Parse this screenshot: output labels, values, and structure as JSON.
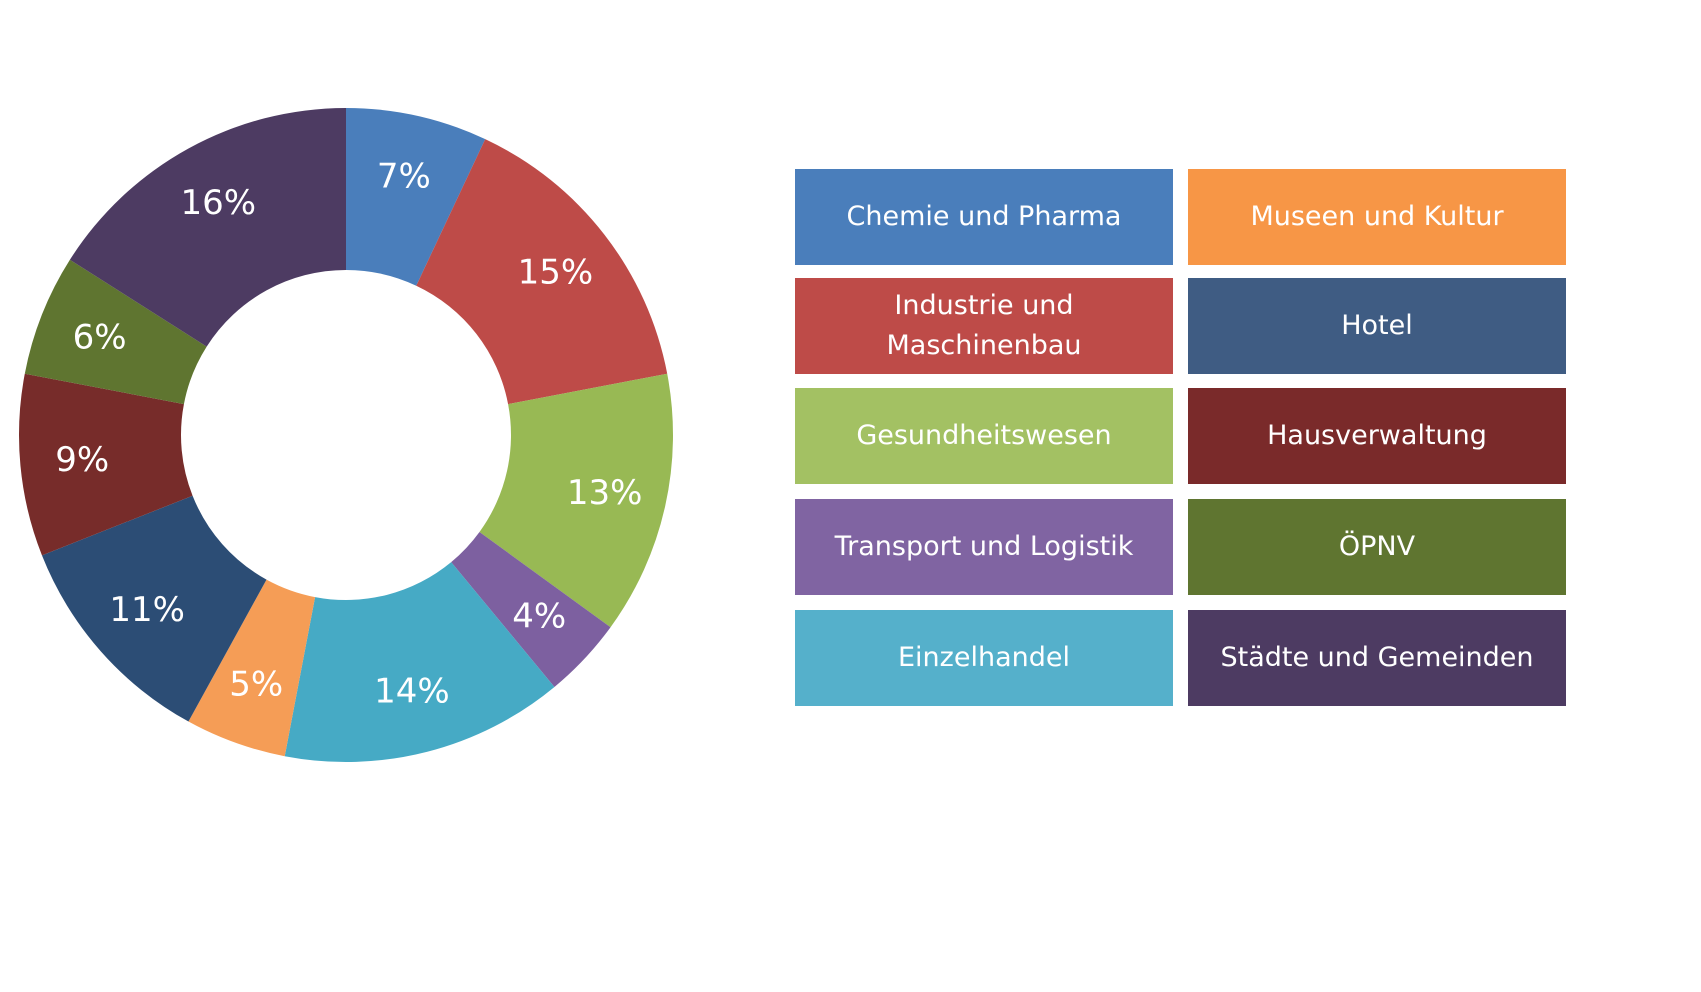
{
  "chart_data": {
    "type": "pie",
    "donut": true,
    "series": [
      {
        "name": "Chemie und Pharma",
        "value": 7,
        "label": "7%",
        "color": "#4A7EBB"
      },
      {
        "name": "Industrie und Maschinenbau",
        "value": 15,
        "label": "15%",
        "color": "#BE4B48"
      },
      {
        "name": "Gesundheitswesen",
        "value": 13,
        "label": "13%",
        "color": "#98B954"
      },
      {
        "name": "Transport und Logistik",
        "value": 4,
        "label": "4%",
        "color": "#7D60A0"
      },
      {
        "name": "Einzelhandel",
        "value": 14,
        "label": "14%",
        "color": "#46AAC5"
      },
      {
        "name": "Museen und Kultur",
        "value": 5,
        "label": "5%",
        "color": "#F59D56"
      },
      {
        "name": "Hotel",
        "value": 11,
        "label": "11%",
        "color": "#2C4D75"
      },
      {
        "name": "Hausverwaltung",
        "value": 9,
        "label": "9%",
        "color": "#772C2A"
      },
      {
        "name": "ÖPNV",
        "value": 6,
        "label": "6%",
        "color": "#5F7530"
      },
      {
        "name": "Städte und Gemeinden",
        "value": 16,
        "label": "16%",
        "color": "#4D3B62"
      }
    ],
    "legend": {
      "placement": "right",
      "items": [
        {
          "label": "Chemie und Pharma",
          "color": "#4A7EBB"
        },
        {
          "label": "Museen und Kultur",
          "color": "#F79646"
        },
        {
          "label": "Industrie und Maschinenbau",
          "color": "#BE4B48"
        },
        {
          "label": "Hotel",
          "color": "#3F5C83"
        },
        {
          "label": "Gesundheitswesen",
          "color": "#A3C163"
        },
        {
          "label": "Hausverwaltung",
          "color": "#7A2A2A"
        },
        {
          "label": "Transport und Logistik",
          "color": "#8064A2"
        },
        {
          "label": "ÖPNV",
          "color": "#5F7530"
        },
        {
          "label": "Einzelhandel",
          "color": "#55B0CB"
        },
        {
          "label": "Städte und Gemeinden",
          "color": "#4D3B62"
        }
      ]
    }
  }
}
